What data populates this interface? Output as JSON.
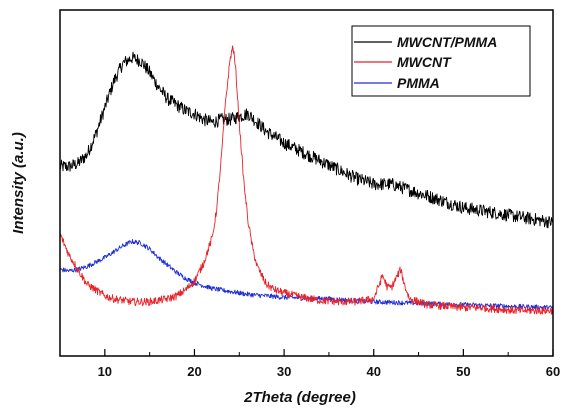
{
  "chart_data": {
    "type": "line",
    "xlabel": "2Theta (degree)",
    "ylabel": "Intensity (a.u.)",
    "xlim": [
      5,
      60
    ],
    "ylim": [
      0,
      100
    ],
    "y_ticks_shown": false,
    "x_ticks": [
      10,
      20,
      30,
      40,
      50,
      60
    ],
    "x_tick_labels": [
      "10",
      "20",
      "30",
      "40",
      "50",
      "60"
    ],
    "grid": false,
    "legend_position": "top-right",
    "series": [
      {
        "name": "MWCNT/PMMA",
        "color": "#000000",
        "x": [
          5,
          6,
          7,
          8,
          9,
          10,
          11,
          12,
          13,
          14,
          15,
          16,
          17,
          18,
          19,
          20,
          21,
          22,
          23,
          24,
          25,
          26,
          27,
          28,
          29,
          30,
          32,
          34,
          36,
          38,
          40,
          42,
          44,
          46,
          48,
          50,
          52,
          54,
          56,
          58,
          60
        ],
        "y": [
          59,
          59,
          60,
          63,
          70,
          79,
          88,
          94,
          96,
          95,
          91,
          86,
          82,
          80,
          78,
          77,
          75,
          74,
          75,
          75,
          76,
          77,
          74,
          71,
          69,
          67,
          64,
          61,
          58,
          55,
          53,
          53,
          51,
          49,
          47,
          45,
          44,
          43,
          42,
          41,
          40
        ]
      },
      {
        "name": "MWCNT",
        "color": "#e8232a",
        "x": [
          5,
          6,
          7,
          8,
          9,
          10,
          11,
          12,
          13,
          14,
          15,
          16,
          17,
          18,
          19,
          20,
          21,
          22,
          22.5,
          23,
          23.5,
          24,
          24.3,
          24.6,
          25,
          25.5,
          26,
          26.5,
          27,
          28,
          29,
          30,
          32,
          34,
          36,
          38,
          40,
          40.5,
          41,
          41.5,
          42,
          42.5,
          43,
          43.5,
          44,
          46,
          48,
          50,
          52,
          54,
          56,
          58,
          60
        ],
        "y": [
          36,
          29,
          24,
          19,
          17,
          15,
          14,
          13.5,
          13,
          13,
          13,
          13.5,
          14,
          15,
          17,
          20,
          26,
          35,
          45,
          62,
          82,
          96,
          100,
          92,
          74,
          54,
          40,
          31,
          25,
          19,
          17,
          16,
          14.5,
          13.5,
          13,
          13,
          14,
          18,
          22,
          18,
          18,
          21,
          24,
          18,
          14,
          12,
          11.5,
          11,
          11,
          10.5,
          10,
          10,
          10
        ]
      },
      {
        "name": "PMMA",
        "color": "#1f2fd6",
        "x": [
          5,
          6,
          7,
          8,
          9,
          10,
          11,
          12,
          13,
          14,
          15,
          16,
          17,
          18,
          19,
          20,
          21,
          22,
          24,
          26,
          28,
          30,
          35,
          40,
          45,
          50,
          55,
          60
        ],
        "y": [
          24,
          23.5,
          24,
          25,
          26.5,
          28,
          30,
          32,
          33.5,
          33,
          31,
          28,
          25.5,
          23,
          21,
          19.5,
          18.5,
          17.5,
          16.5,
          15.5,
          15,
          14.5,
          14,
          13,
          12.5,
          12,
          11.5,
          11
        ]
      }
    ]
  }
}
